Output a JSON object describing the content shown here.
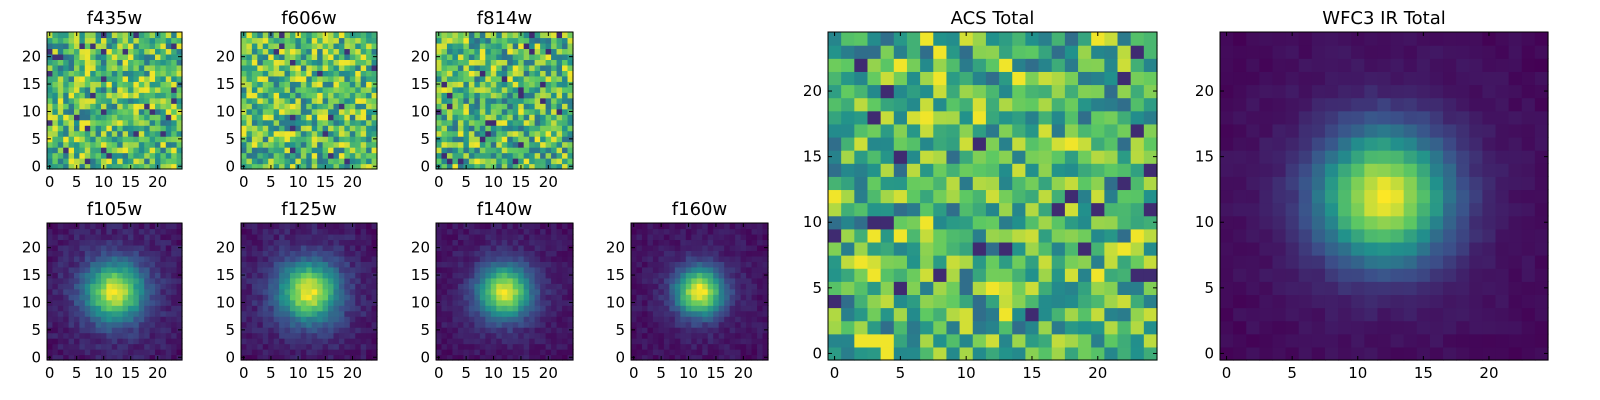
{
  "figure": {
    "colormap": "viridis",
    "colormap_stops": [
      "#440154",
      "#3b528b",
      "#21918c",
      "#5ec962",
      "#fde725"
    ],
    "axis_color": "#000000",
    "background": "#ffffff"
  },
  "chart_data": [
    {
      "type": "heatmap",
      "title": "f435w",
      "grid_size": 25,
      "pattern": "noise",
      "peak": [
        12.5,
        12.5
      ],
      "peak_sigma": 0,
      "noise_level": 0.55,
      "base_level": 0.7,
      "x_ticks": [
        0,
        5,
        10,
        15,
        20
      ],
      "y_ticks": [
        0,
        5,
        10,
        15,
        20
      ],
      "xlim": [
        0,
        25
      ],
      "ylim": [
        0,
        25
      ],
      "seed": 11
    },
    {
      "type": "heatmap",
      "title": "f606w",
      "grid_size": 25,
      "pattern": "noise",
      "peak": [
        12.5,
        12.5
      ],
      "peak_sigma": 0,
      "noise_level": 0.55,
      "base_level": 0.7,
      "x_ticks": [
        0,
        5,
        10,
        15,
        20
      ],
      "y_ticks": [
        0,
        5,
        10,
        15,
        20
      ],
      "xlim": [
        0,
        25
      ],
      "ylim": [
        0,
        25
      ],
      "seed": 23
    },
    {
      "type": "heatmap",
      "title": "f814w",
      "grid_size": 25,
      "pattern": "noise",
      "peak": [
        12.5,
        12.5
      ],
      "peak_sigma": 0,
      "noise_level": 0.55,
      "base_level": 0.68,
      "x_ticks": [
        0,
        5,
        10,
        15,
        20
      ],
      "y_ticks": [
        0,
        5,
        10,
        15,
        20
      ],
      "xlim": [
        0,
        25
      ],
      "ylim": [
        0,
        25
      ],
      "seed": 37
    },
    {
      "type": "heatmap",
      "title": "f105w",
      "grid_size": 25,
      "pattern": "gaussian",
      "peak": [
        12.5,
        12.5
      ],
      "peak_sigma": 3.6,
      "noise_level": 0.12,
      "base_level": 0.35,
      "x_ticks": [
        0,
        5,
        10,
        15,
        20
      ],
      "y_ticks": [
        0,
        5,
        10,
        15,
        20
      ],
      "xlim": [
        0,
        25
      ],
      "ylim": [
        0,
        25
      ],
      "seed": 41
    },
    {
      "type": "heatmap",
      "title": "f125w",
      "grid_size": 25,
      "pattern": "gaussian",
      "peak": [
        12.5,
        12.5
      ],
      "peak_sigma": 3.6,
      "noise_level": 0.12,
      "base_level": 0.38,
      "x_ticks": [
        0,
        5,
        10,
        15,
        20
      ],
      "y_ticks": [
        0,
        5,
        10,
        15,
        20
      ],
      "xlim": [
        0,
        25
      ],
      "ylim": [
        0,
        25
      ],
      "seed": 53
    },
    {
      "type": "heatmap",
      "title": "f140w",
      "grid_size": 25,
      "pattern": "gaussian",
      "peak": [
        12.5,
        12.5
      ],
      "peak_sigma": 3.3,
      "noise_level": 0.1,
      "base_level": 0.25,
      "x_ticks": [
        0,
        5,
        10,
        15,
        20
      ],
      "y_ticks": [
        0,
        5,
        10,
        15,
        20
      ],
      "xlim": [
        0,
        25
      ],
      "ylim": [
        0,
        25
      ],
      "seed": 67
    },
    {
      "type": "heatmap",
      "title": "f160w",
      "grid_size": 25,
      "pattern": "gaussian",
      "peak": [
        12.5,
        12.5
      ],
      "peak_sigma": 3.0,
      "noise_level": 0.1,
      "base_level": 0.18,
      "x_ticks": [
        0,
        5,
        10,
        15,
        20
      ],
      "y_ticks": [
        0,
        5,
        10,
        15,
        20
      ],
      "xlim": [
        0,
        25
      ],
      "ylim": [
        0,
        25
      ],
      "seed": 79
    },
    {
      "type": "heatmap",
      "title": "ACS Total",
      "grid_size": 25,
      "pattern": "noise",
      "peak": [
        12.5,
        12.5
      ],
      "peak_sigma": 0,
      "noise_level": 0.5,
      "base_level": 0.68,
      "x_ticks": [
        0,
        5,
        10,
        15,
        20
      ],
      "y_ticks": [
        0,
        5,
        10,
        15,
        20
      ],
      "xlim": [
        0,
        25
      ],
      "ylim": [
        0,
        25
      ],
      "seed": 97
    },
    {
      "type": "heatmap",
      "title": "WFC3 IR Total",
      "grid_size": 25,
      "pattern": "gaussian",
      "peak": [
        12.5,
        12.5
      ],
      "peak_sigma": 3.4,
      "noise_level": 0.05,
      "base_level": 0.22,
      "x_ticks": [
        0,
        5,
        10,
        15,
        20
      ],
      "y_ticks": [
        0,
        5,
        10,
        15,
        20
      ],
      "xlim": [
        0,
        25
      ],
      "ylim": [
        0,
        25
      ],
      "seed": 101
    }
  ]
}
